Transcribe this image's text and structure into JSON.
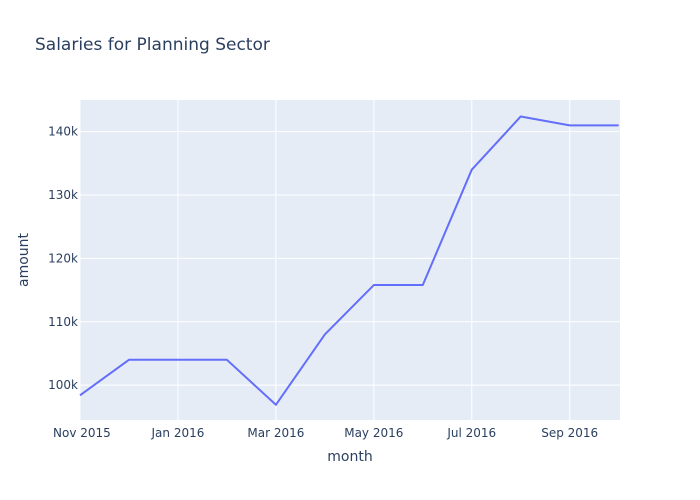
{
  "chart_data": {
    "type": "line",
    "title": "Salaries for Planning Sector",
    "xlabel": "month",
    "ylabel": "amount",
    "x": [
      "Nov 2015",
      "Dec 2015",
      "Jan 2016",
      "Feb 2016",
      "Mar 2016",
      "Apr 2016",
      "May 2016",
      "Jun 2016",
      "Jul 2016",
      "Aug 2016",
      "Sep 2016",
      "Oct 2016"
    ],
    "series": [
      {
        "values": [
          98400,
          104000,
          104000,
          104000,
          96900,
          108000,
          115800,
          115800,
          134000,
          142400,
          141000,
          141000
        ]
      }
    ],
    "x_ticks": [
      "Nov 2015",
      "Jan 2016",
      "Mar 2016",
      "May 2016",
      "Jul 2016",
      "Sep 2016"
    ],
    "y_ticks": [
      100000,
      110000,
      120000,
      130000,
      140000
    ],
    "y_tick_labels": [
      "100k",
      "110k",
      "120k",
      "130k",
      "140k"
    ],
    "ylim": [
      94500,
      145000
    ],
    "grid": true,
    "colors": {
      "line": "#636efa",
      "plot_bg": "#e5ecf6",
      "grid": "#ffffff",
      "text": "#2a3f5f"
    }
  }
}
